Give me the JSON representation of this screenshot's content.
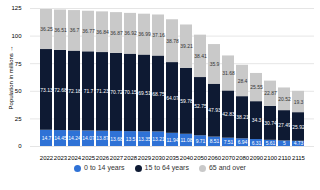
{
  "chart_data": {
    "type": "bar",
    "stacked": true,
    "data_labels": true,
    "grid": true,
    "y_label": "Population in millions",
    "categories": [
      "2022",
      "2023",
      "2024",
      "2025",
      "2026",
      "2027",
      "2028",
      "2029",
      "2030",
      "2035",
      "2040",
      "2050",
      "2060",
      "2070",
      "2080",
      "2090",
      "2100",
      "2110",
      "2115"
    ],
    "series": [
      {
        "name": "0 to 14 years",
        "color": "#2f72d6",
        "values": [
          14.7,
          14.45,
          14.24,
          14.07,
          13.87,
          13.68,
          13.5,
          13.35,
          13.21,
          11.94,
          11.08,
          9.71,
          8.51,
          7.51,
          6.94,
          6.31,
          5.61,
          5.0,
          4.73
        ]
      },
      {
        "name": "15 to 64 years",
        "color": "#0e1a33",
        "values": [
          73.13,
          72.68,
          72.18,
          71.7,
          71.23,
          70.72,
          70.15,
          69.51,
          68.75,
          64.07,
          59.78,
          52.75,
          47.93,
          42.83,
          38.21,
          34.3,
          30.74,
          27.49,
          25.92
        ]
      },
      {
        "name": "65 and over",
        "color": "#c9c9c9",
        "values": [
          36.25,
          36.51,
          36.7,
          36.77,
          36.84,
          36.87,
          36.92,
          36.99,
          37.16,
          38.78,
          39.21,
          38.41,
          35.9,
          31.68,
          28.4,
          25.55,
          22.87,
          20.52,
          19.3
        ]
      }
    ],
    "ylim": [
      0,
      125
    ],
    "yticks": [
      0,
      25,
      50,
      75,
      100,
      125
    ]
  }
}
